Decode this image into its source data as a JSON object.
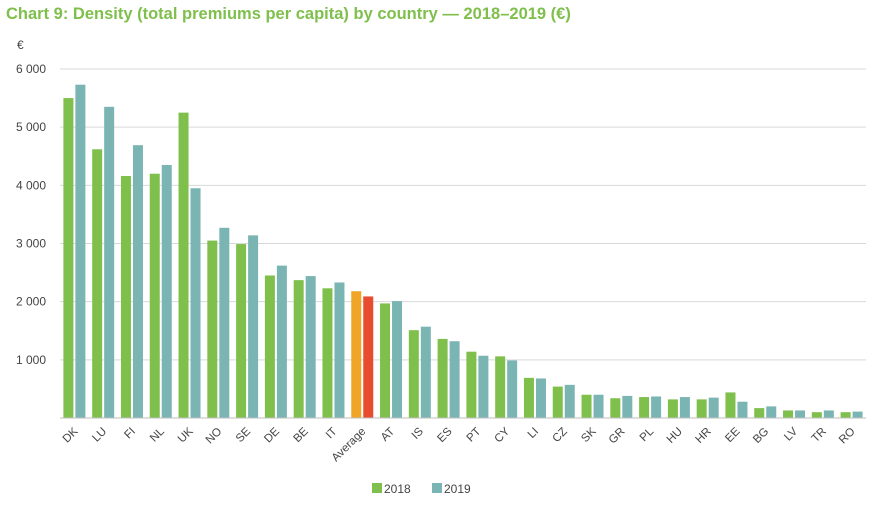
{
  "chart_data": {
    "type": "bar",
    "title": "Chart 9: Density (total premiums per capita) by country — 2018–2019 (€)",
    "ylabel": "€",
    "xlabel": "",
    "ylim": [
      0,
      6000
    ],
    "yticks": [
      1000,
      2000,
      3000,
      4000,
      5000,
      6000
    ],
    "ytick_labels": [
      "1 000",
      "2 000",
      "3 000",
      "4 000",
      "5 000",
      "6 000"
    ],
    "grid": true,
    "legend_position": "bottom",
    "categories": [
      "DK",
      "LU",
      "FI",
      "NL",
      "UK",
      "NO",
      "SE",
      "DE",
      "BE",
      "IT",
      "Average",
      "AT",
      "IS",
      "ES",
      "PT",
      "CY",
      "LI",
      "CZ",
      "SK",
      "GR",
      "PL",
      "HU",
      "HR",
      "EE",
      "BG",
      "LV",
      "TR",
      "RO"
    ],
    "series": [
      {
        "name": "2018",
        "color": "#7fbf4c",
        "values": [
          5500,
          4620,
          4160,
          4200,
          5250,
          3050,
          2990,
          2450,
          2370,
          2230,
          2180,
          1970,
          1510,
          1360,
          1140,
          1060,
          690,
          540,
          400,
          340,
          360,
          320,
          320,
          440,
          170,
          130,
          100,
          100
        ]
      },
      {
        "name": "2019",
        "color": "#7ab5b3",
        "values": [
          5730,
          5350,
          4690,
          4350,
          3950,
          3270,
          3140,
          2620,
          2440,
          2330,
          2090,
          2010,
          1570,
          1320,
          1070,
          990,
          680,
          570,
          400,
          380,
          370,
          360,
          350,
          280,
          200,
          130,
          130,
          110
        ]
      }
    ],
    "highlight": {
      "category": "Average",
      "colors": {
        "2018": "#f0a526",
        "2019": "#e84c2e"
      }
    }
  }
}
